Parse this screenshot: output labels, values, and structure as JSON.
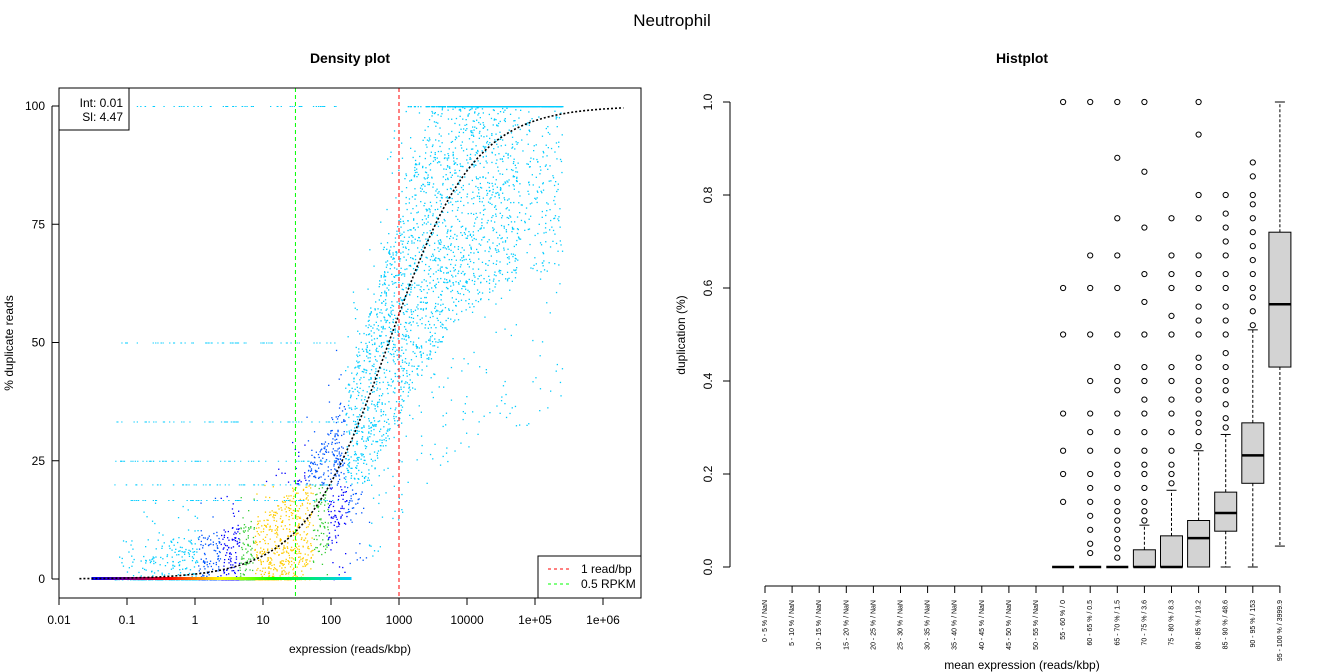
{
  "title": "Neutrophil",
  "chart_data": [
    {
      "type": "scatter",
      "title": "Density plot",
      "xlabel": "expression (reads/kbp)",
      "ylabel": "% duplicate reads",
      "x_scale": "log10",
      "xlim": [
        0.01,
        1000000
      ],
      "ylim": [
        0,
        100
      ],
      "x_ticks": [
        "0.01",
        "0.1",
        "1",
        "10",
        "100",
        "1000",
        "10000",
        "1e+05",
        "1e+06"
      ],
      "y_ticks": [
        "0",
        "25",
        "50",
        "75",
        "100"
      ],
      "fit_annotation": {
        "int": "Int: 0.01",
        "sl": "Sl: 4.47"
      },
      "vlines": [
        {
          "label": "1 read/bp",
          "x": 1000,
          "color": "#ff0000"
        },
        {
          "label": "0.5 RPKM",
          "x": 30,
          "color": "#00ff00"
        }
      ],
      "legend_position": "bottom-right",
      "fit_line": "dotted logistic fit, black"
    },
    {
      "type": "box",
      "title": "Histplot",
      "xlabel": "mean expression (reads/kbp)",
      "ylabel": "duplication (%)",
      "ylim": [
        0,
        1
      ],
      "y_ticks": [
        "0.0",
        "0.2",
        "0.4",
        "0.6",
        "0.8",
        "1.0"
      ],
      "categories": [
        "0 - 5 % / NaN",
        "5 - 10 % / NaN",
        "10 - 15 % / NaN",
        "15 - 20 % / NaN",
        "20 - 25 % / NaN",
        "25 - 30 % / NaN",
        "30 - 35 % / NaN",
        "35 - 40 % / NaN",
        "40 - 45 % / NaN",
        "45 - 50 % / NaN",
        "50 - 55 % / NaN",
        "55 - 60 % / 0",
        "60 - 65 % / 0.5",
        "65 - 70 % / 1.5",
        "70 - 75 % / 3.6",
        "75 - 80 % / 8.3",
        "80 - 85 % / 19.2",
        "85 - 90 % / 48.6",
        "90 - 95 % / 153",
        "95 - 100 % / 3999.9"
      ],
      "boxes": [
        null,
        null,
        null,
        null,
        null,
        null,
        null,
        null,
        null,
        null,
        null,
        {
          "min": 0,
          "q1": 0,
          "median": 0,
          "q3": 0,
          "max": 0,
          "outliers": [
            0.14,
            0.2,
            0.25,
            0.33,
            0.5,
            0.6,
            1.0
          ]
        },
        {
          "min": 0,
          "q1": 0,
          "median": 0,
          "q3": 0,
          "max": 0,
          "outliers": [
            0.03,
            0.05,
            0.08,
            0.11,
            0.14,
            0.17,
            0.2,
            0.25,
            0.29,
            0.33,
            0.4,
            0.5,
            0.6,
            0.67,
            1.0
          ]
        },
        {
          "min": 0,
          "q1": 0,
          "median": 0,
          "q3": 0,
          "max": 0,
          "outliers": [
            0.02,
            0.04,
            0.06,
            0.08,
            0.1,
            0.12,
            0.14,
            0.17,
            0.2,
            0.22,
            0.25,
            0.29,
            0.33,
            0.38,
            0.4,
            0.43,
            0.5,
            0.6,
            0.67,
            0.75,
            0.88,
            1.0
          ]
        },
        {
          "min": 0,
          "q1": 0,
          "median": 0,
          "q3": 0.037,
          "max": 0.09,
          "outliers": [
            0.1,
            0.12,
            0.14,
            0.17,
            0.2,
            0.22,
            0.25,
            0.29,
            0.33,
            0.36,
            0.4,
            0.43,
            0.5,
            0.57,
            0.63,
            0.73,
            0.85,
            1.0
          ]
        },
        {
          "min": 0,
          "q1": 0,
          "median": 0,
          "q3": 0.067,
          "max": 0.165,
          "outliers": [
            0.18,
            0.2,
            0.22,
            0.25,
            0.29,
            0.33,
            0.36,
            0.4,
            0.43,
            0.5,
            0.54,
            0.6,
            0.63,
            0.67,
            0.75
          ]
        },
        {
          "min": 0,
          "q1": 0,
          "median": 0.062,
          "q3": 0.1,
          "max": 0.25,
          "outliers": [
            0.26,
            0.29,
            0.31,
            0.33,
            0.36,
            0.38,
            0.4,
            0.43,
            0.45,
            0.5,
            0.53,
            0.56,
            0.6,
            0.63,
            0.67,
            0.75,
            0.8,
            0.93,
            1.0
          ]
        },
        {
          "min": 0,
          "q1": 0.077,
          "median": 0.116,
          "q3": 0.161,
          "max": 0.285,
          "outliers": [
            0.3,
            0.32,
            0.35,
            0.38,
            0.4,
            0.43,
            0.46,
            0.5,
            0.53,
            0.56,
            0.6,
            0.63,
            0.67,
            0.7,
            0.73,
            0.76,
            0.8
          ]
        },
        {
          "min": 0,
          "q1": 0.18,
          "median": 0.24,
          "q3": 0.31,
          "max": 0.51,
          "outliers": [
            0.52,
            0.55,
            0.58,
            0.6,
            0.63,
            0.66,
            0.69,
            0.72,
            0.75,
            0.78,
            0.8,
            0.84,
            0.87
          ]
        },
        {
          "min": 0.045,
          "q1": 0.43,
          "median": 0.565,
          "q3": 0.72,
          "max": 1.0,
          "outliers": []
        }
      ]
    }
  ]
}
